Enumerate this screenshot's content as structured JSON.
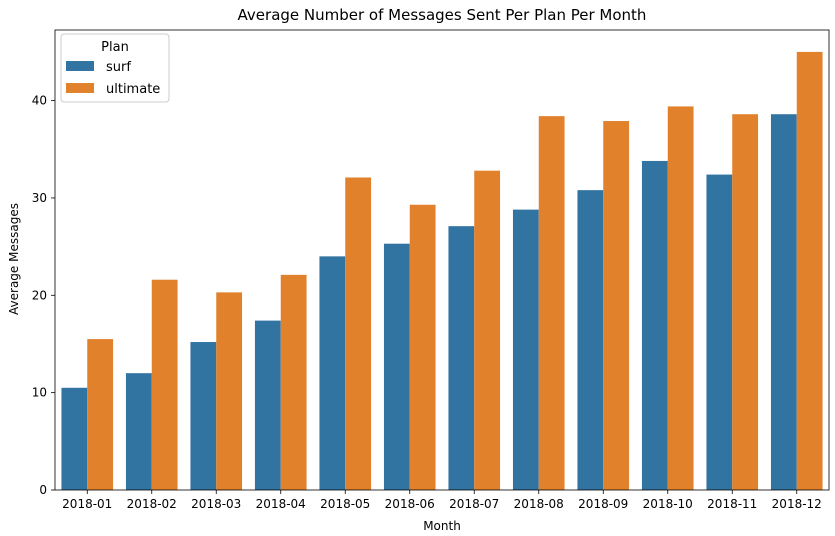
{
  "chart_data": {
    "type": "bar",
    "title": "Average Number of Messages Sent Per Plan Per Month",
    "xlabel": "Month",
    "ylabel": "Average Messages",
    "categories": [
      "2018-01",
      "2018-02",
      "2018-03",
      "2018-04",
      "2018-05",
      "2018-06",
      "2018-07",
      "2018-08",
      "2018-09",
      "2018-10",
      "2018-11",
      "2018-12"
    ],
    "series": [
      {
        "name": "surf",
        "color": "#3274a1",
        "values": [
          10.5,
          12.0,
          15.2,
          17.4,
          24.0,
          25.3,
          27.1,
          28.8,
          30.8,
          33.8,
          32.4,
          38.6
        ]
      },
      {
        "name": "ultimate",
        "color": "#e1812c",
        "values": [
          15.5,
          21.6,
          20.3,
          22.1,
          32.1,
          29.3,
          32.8,
          38.4,
          37.9,
          39.4,
          38.6,
          45.0
        ]
      }
    ],
    "ylim": [
      0,
      47.25
    ],
    "yticks": [
      0,
      10,
      20,
      30,
      40
    ],
    "legend": {
      "title": "Plan",
      "position": "top-left"
    },
    "grid": false
  }
}
